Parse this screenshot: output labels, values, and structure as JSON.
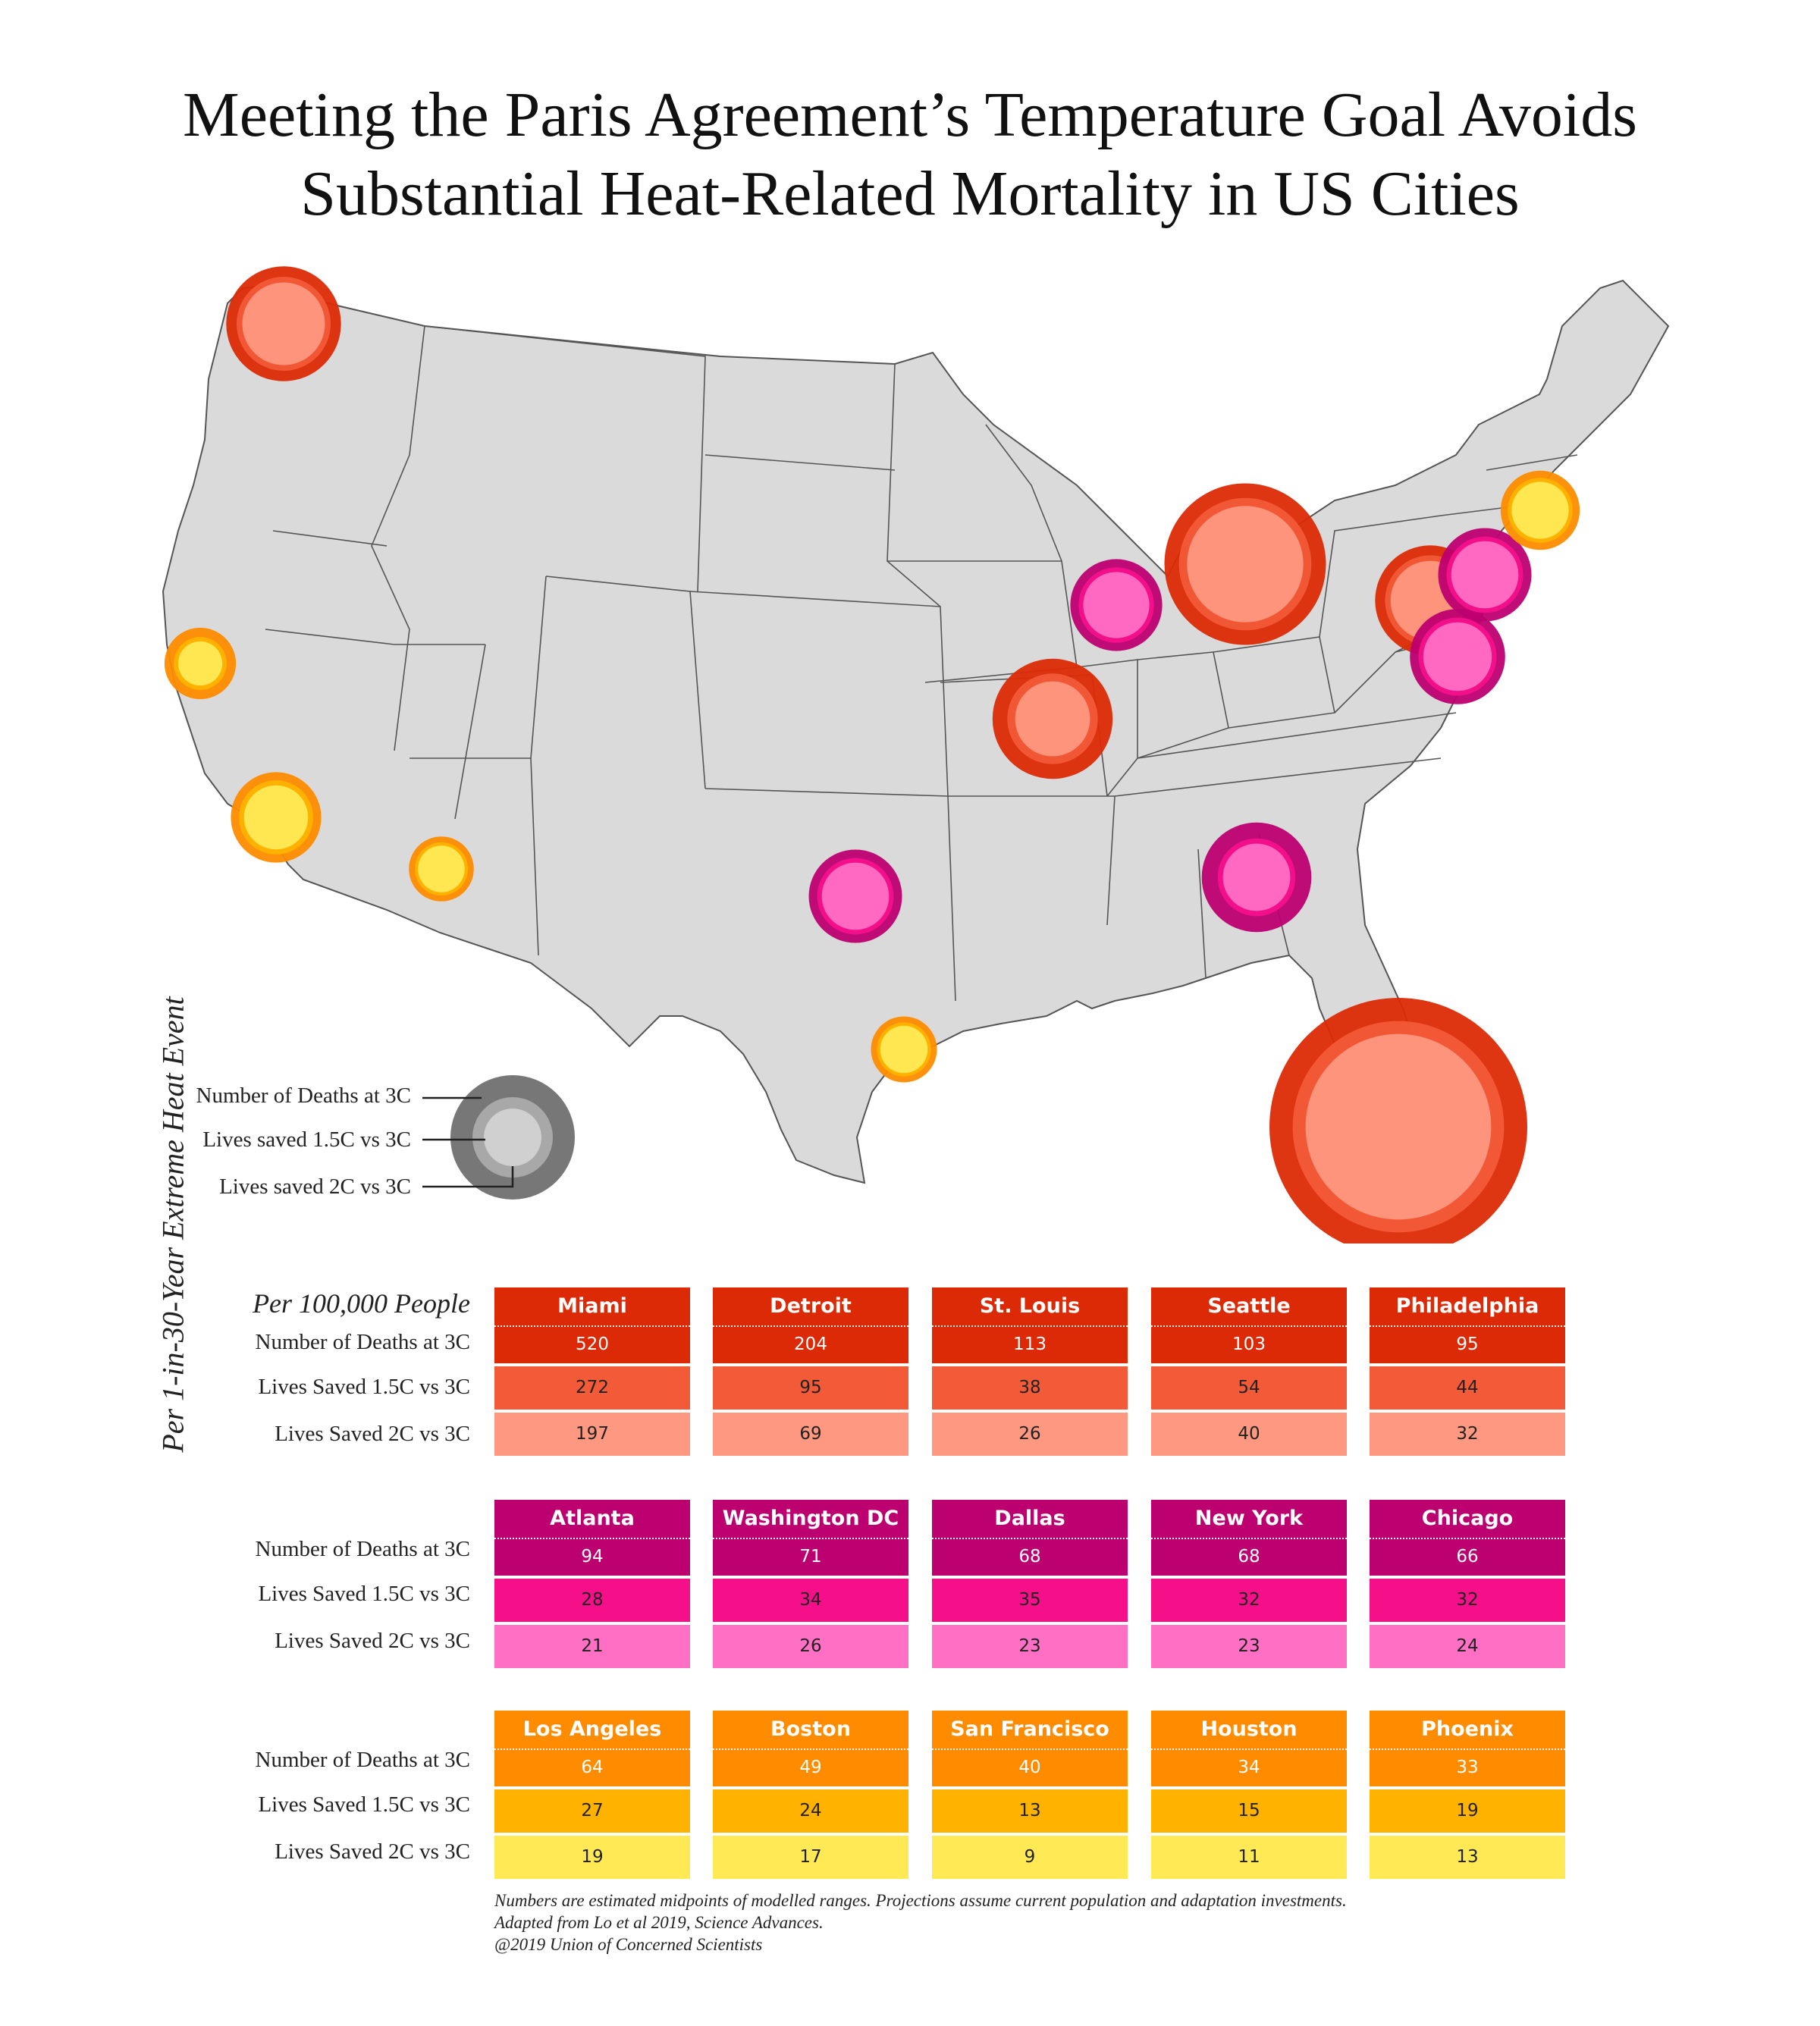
{
  "title_lines": [
    "Meeting the Paris Agreement’s Temperature Goal Avoids",
    "Substantial Heat-Related Mortality in US Cities"
  ],
  "legend": {
    "deaths_label": "Number of Deaths at 3C",
    "saved15_label": "Lives saved 1.5C vs 3C",
    "saved2_label": "Lives saved 2C vs 3C"
  },
  "table": {
    "per_label": "Per 100,000 People",
    "vertical_label": "Per 1-in-30-Year Extreme Heat Event",
    "row_labels": [
      "Number of Deaths at 3C",
      "Lives Saved 1.5C vs 3C",
      "Lives Saved 2C vs 3C"
    ]
  },
  "colors": {
    "red": {
      "dark": "#dc2a06",
      "mid": "#f25a38",
      "light": "#fe9880"
    },
    "magenta": {
      "dark": "#bd0070",
      "mid": "#f5108a",
      "light": "#ff6fc4"
    },
    "orange": {
      "dark": "#ff8c00",
      "mid": "#ffb300",
      "light": "#ffea55"
    },
    "legend": {
      "dark": "#777777",
      "mid": "#a8a8a8",
      "light": "#d0d0d0"
    },
    "land": "#dadada",
    "state_border": "#555555"
  },
  "cities": [
    {
      "name": "Miami",
      "group": "red",
      "deaths": "520",
      "saved15": "272",
      "saved2": "197"
    },
    {
      "name": "Detroit",
      "group": "red",
      "deaths": "204",
      "saved15": "95",
      "saved2": "69"
    },
    {
      "name": "St. Louis",
      "group": "red",
      "deaths": "113",
      "saved15": "38",
      "saved2": "26"
    },
    {
      "name": "Seattle",
      "group": "red",
      "deaths": "103",
      "saved15": "54",
      "saved2": "40"
    },
    {
      "name": "Philadelphia",
      "group": "red",
      "deaths": "95",
      "saved15": "44",
      "saved2": "32"
    },
    {
      "name": "Atlanta",
      "group": "magenta",
      "deaths": "94",
      "saved15": "28",
      "saved2": "21"
    },
    {
      "name": "Washington DC",
      "group": "magenta",
      "deaths": "71",
      "saved15": "34",
      "saved2": "26"
    },
    {
      "name": "Dallas",
      "group": "magenta",
      "deaths": "68",
      "saved15": "35",
      "saved2": "23"
    },
    {
      "name": "New York",
      "group": "magenta",
      "deaths": "68",
      "saved15": "32",
      "saved2": "23"
    },
    {
      "name": "Chicago",
      "group": "magenta",
      "deaths": "66",
      "saved15": "32",
      "saved2": "24"
    },
    {
      "name": "Los Angeles",
      "group": "orange",
      "deaths": "64",
      "saved15": "27",
      "saved2": "19"
    },
    {
      "name": "Boston",
      "group": "orange",
      "deaths": "49",
      "saved15": "24",
      "saved2": "17"
    },
    {
      "name": "San Francisco",
      "group": "orange",
      "deaths": "40",
      "saved15": "13",
      "saved2": "9"
    },
    {
      "name": "Houston",
      "group": "orange",
      "deaths": "34",
      "saved15": "15",
      "saved2": "11"
    },
    {
      "name": "Phoenix",
      "group": "orange",
      "deaths": "33",
      "saved15": "19",
      "saved2": "13"
    }
  ],
  "footnote_lines": [
    "Numbers are estimated midpoints of modelled ranges. Projections assume current population and adaptation investments.",
    "Adapted from Lo et al 2019, Science Advances.",
    "@2019 Union of Concerned Scientists"
  ]
}
